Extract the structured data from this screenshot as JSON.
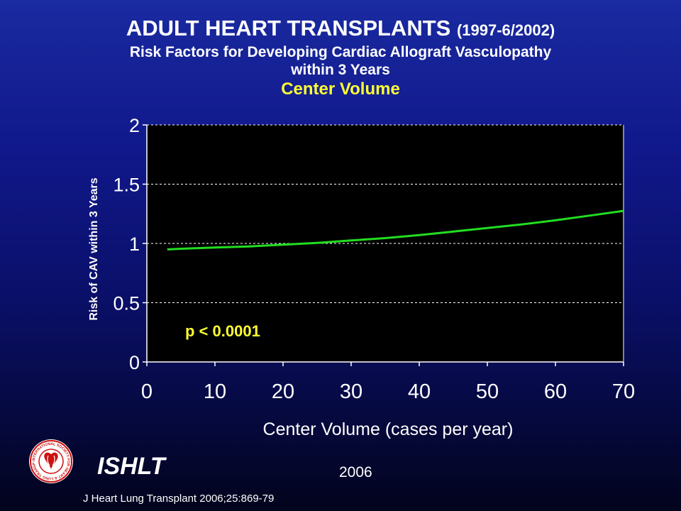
{
  "header": {
    "title": "ADULT HEART TRANSPLANTS",
    "title_years": "(1997-6/2002)",
    "subtitle_line1": "Risk Factors for Developing Cardiac Allograft Vasculopathy",
    "subtitle_line2": "within 3 Years",
    "section": "Center Volume"
  },
  "chart_data": {
    "type": "line",
    "xlabel": "Center Volume (cases per year)",
    "ylabel": "Risk of CAV within 3 Years",
    "xlim": [
      0,
      70
    ],
    "ylim": [
      0,
      2
    ],
    "x_ticks": [
      "0",
      "10",
      "20",
      "30",
      "40",
      "50",
      "60",
      "70"
    ],
    "y_ticks": [
      "0",
      "0.5",
      "1",
      "1.5",
      "2"
    ],
    "grid": "horizontal dashed",
    "annotation": "p < 0.0001",
    "series": [
      {
        "color": "#22dd22",
        "x": [
          3,
          5,
          10,
          15,
          20,
          25,
          30,
          35,
          40,
          45,
          50,
          55,
          60,
          65,
          70
        ],
        "y": [
          0.95,
          0.955,
          0.965,
          0.975,
          0.99,
          1.005,
          1.025,
          1.045,
          1.07,
          1.1,
          1.13,
          1.16,
          1.195,
          1.235,
          1.275
        ]
      }
    ]
  },
  "footer": {
    "org": "ISHLT",
    "year": "2006",
    "citation": "J Heart Lung Transplant 2006;25:869-79",
    "logo_text": "INTERNATIONAL SOCIETY FOR HEART & LUNG TRANSPLANTATION"
  }
}
